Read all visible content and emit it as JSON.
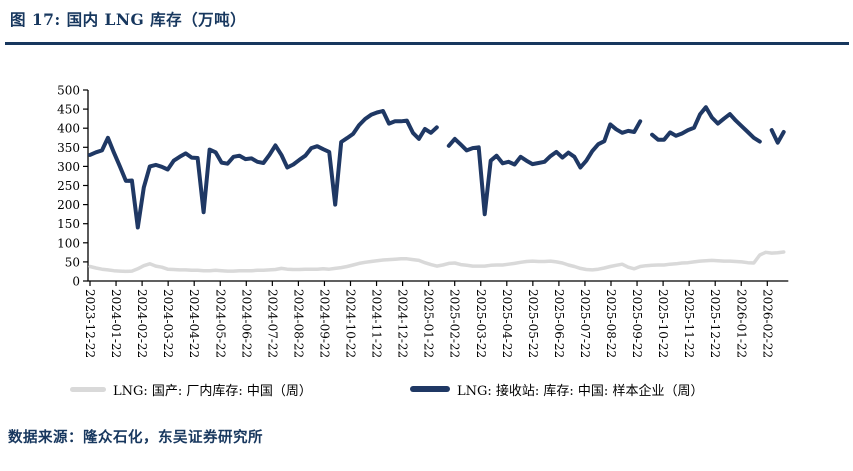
{
  "page": {
    "title": "图 17:  国内 LNG 库存（万吨）",
    "source": "数据来源：隆众石化，东吴证券研究所",
    "accent_color": "#17375e"
  },
  "chart_data": {
    "type": "line",
    "title": "国内 LNG 库存（万吨）",
    "xlabel": "",
    "ylabel": "",
    "ylim": [
      0,
      500
    ],
    "ytick_interval": 50,
    "grid": false,
    "legend_position": "bottom",
    "x_tick_labels": [
      "2023-12-22",
      "2024-01-22",
      "2024-02-22",
      "2024-03-22",
      "2024-04-22",
      "2024-05-22",
      "2024-06-22",
      "2024-07-22",
      "2024-08-22",
      "2024-09-22",
      "2024-10-22",
      "2024-11-22",
      "2024-12-22",
      "2025-01-22",
      "2025-02-22",
      "2025-03-22",
      "2025-04-22",
      "2025-05-22",
      "2025-06-22",
      "2025-07-22",
      "2025-08-22",
      "2025-09-22",
      "2025-10-22",
      "2025-11-22",
      "2025-12-22",
      "2026-01-22",
      "2026-02-22"
    ],
    "x_weekly_dates": [
      "2023-12-22",
      "2023-12-29",
      "2024-01-05",
      "2024-01-12",
      "2024-01-19",
      "2024-01-26",
      "2024-02-02",
      "2024-02-09",
      "2024-02-16",
      "2024-02-23",
      "2024-03-01",
      "2024-03-08",
      "2024-03-15",
      "2024-03-22",
      "2024-03-29",
      "2024-04-05",
      "2024-04-12",
      "2024-04-19",
      "2024-04-26",
      "2024-05-03",
      "2024-05-10",
      "2024-05-17",
      "2024-05-24",
      "2024-05-31",
      "2024-06-07",
      "2024-06-14",
      "2024-06-21",
      "2024-06-28",
      "2024-07-05",
      "2024-07-12",
      "2024-07-19",
      "2024-07-26",
      "2024-08-02",
      "2024-08-09",
      "2024-08-16",
      "2024-08-23",
      "2024-08-30",
      "2024-09-06",
      "2024-09-13",
      "2024-09-20",
      "2024-09-27",
      "2024-10-04",
      "2024-10-11",
      "2024-10-18",
      "2024-10-25",
      "2024-11-01",
      "2024-11-08",
      "2024-11-15",
      "2024-11-22",
      "2024-11-29",
      "2024-12-06",
      "2024-12-13",
      "2024-12-20",
      "2024-12-27",
      "2025-01-03",
      "2025-01-10",
      "2025-01-17",
      "2025-01-24",
      "2025-01-31",
      "2025-02-07",
      "2025-02-14",
      "2025-02-21",
      "2025-02-28",
      "2025-03-07",
      "2025-03-14",
      "2025-03-21",
      "2025-03-28",
      "2025-04-04",
      "2025-04-11",
      "2025-04-18",
      "2025-04-25",
      "2025-05-02",
      "2025-05-09",
      "2025-05-16",
      "2025-05-23",
      "2025-05-30",
      "2025-06-06",
      "2025-06-13",
      "2025-06-20",
      "2025-06-27",
      "2025-07-04",
      "2025-07-11",
      "2025-07-18",
      "2025-07-25",
      "2025-08-01",
      "2025-08-08",
      "2025-08-15",
      "2025-08-22",
      "2025-08-29",
      "2025-09-05",
      "2025-09-12",
      "2025-09-19",
      "2025-09-26",
      "2025-10-03",
      "2025-10-10",
      "2025-10-17",
      "2025-10-24",
      "2025-10-31",
      "2025-11-07",
      "2025-11-14",
      "2025-11-21",
      "2025-11-28",
      "2025-12-05",
      "2025-12-12",
      "2025-12-19",
      "2025-12-26",
      "2026-01-02",
      "2026-01-09",
      "2026-01-16",
      "2026-01-23",
      "2026-01-30",
      "2026-02-06",
      "2026-02-13",
      "2026-02-20",
      "2026-02-27",
      "2026-03-06",
      "2026-03-13"
    ],
    "series": [
      {
        "name": "LNG: 国产: 厂内库存: 中国（周）",
        "color": "#d9d9d9",
        "stroke_width": 3.5,
        "values": [
          38,
          34,
          31,
          29,
          27,
          26,
          25,
          26,
          32,
          40,
          45,
          39,
          36,
          31,
          30,
          29,
          29,
          28,
          28,
          27,
          27,
          28,
          27,
          26,
          26,
          27,
          27,
          27,
          28,
          28,
          29,
          30,
          33,
          31,
          30,
          30,
          31,
          31,
          31,
          32,
          31,
          33,
          35,
          38,
          42,
          46,
          49,
          51,
          53,
          55,
          56,
          57,
          58,
          58,
          56,
          54,
          48,
          43,
          39,
          42,
          46,
          47,
          43,
          41,
          39,
          39,
          39,
          41,
          42,
          42,
          44,
          46,
          49,
          51,
          52,
          51,
          51,
          52,
          50,
          47,
          42,
          38,
          33,
          30,
          29,
          31,
          34,
          38,
          41,
          44,
          36,
          32,
          38,
          40,
          41,
          42,
          42,
          44,
          45,
          47,
          48,
          50,
          52,
          53,
          54,
          53,
          52,
          52,
          51,
          50,
          48,
          47,
          68,
          75,
          73,
          74,
          76
        ]
      },
      {
        "name": "LNG: 接收站: 库存: 中国: 样本企业（周）",
        "color": "#1f3864",
        "stroke_width": 4,
        "values": [
          330,
          337,
          342,
          375,
          336,
          300,
          262,
          263,
          140,
          245,
          300,
          304,
          299,
          292,
          315,
          325,
          334,
          323,
          322,
          180,
          344,
          337,
          310,
          307,
          325,
          328,
          319,
          321,
          312,
          309,
          330,
          355,
          330,
          297,
          305,
          317,
          328,
          348,
          353,
          345,
          338,
          200,
          364,
          374,
          385,
          408,
          424,
          435,
          441,
          445,
          412,
          418,
          418,
          420,
          388,
          372,
          398,
          388,
          402,
          null,
          354,
          372,
          357,
          342,
          348,
          350,
          175,
          315,
          328,
          308,
          312,
          305,
          325,
          315,
          306,
          309,
          312,
          327,
          338,
          323,
          336,
          325,
          297,
          315,
          340,
          358,
          366,
          410,
          397,
          388,
          393,
          390,
          418,
          null,
          383,
          370,
          370,
          389,
          380,
          386,
          395,
          401,
          436,
          455,
          428,
          412,
          425,
          437,
          420,
          405,
          390,
          375,
          365,
          null,
          395,
          362,
          390
        ]
      }
    ]
  }
}
